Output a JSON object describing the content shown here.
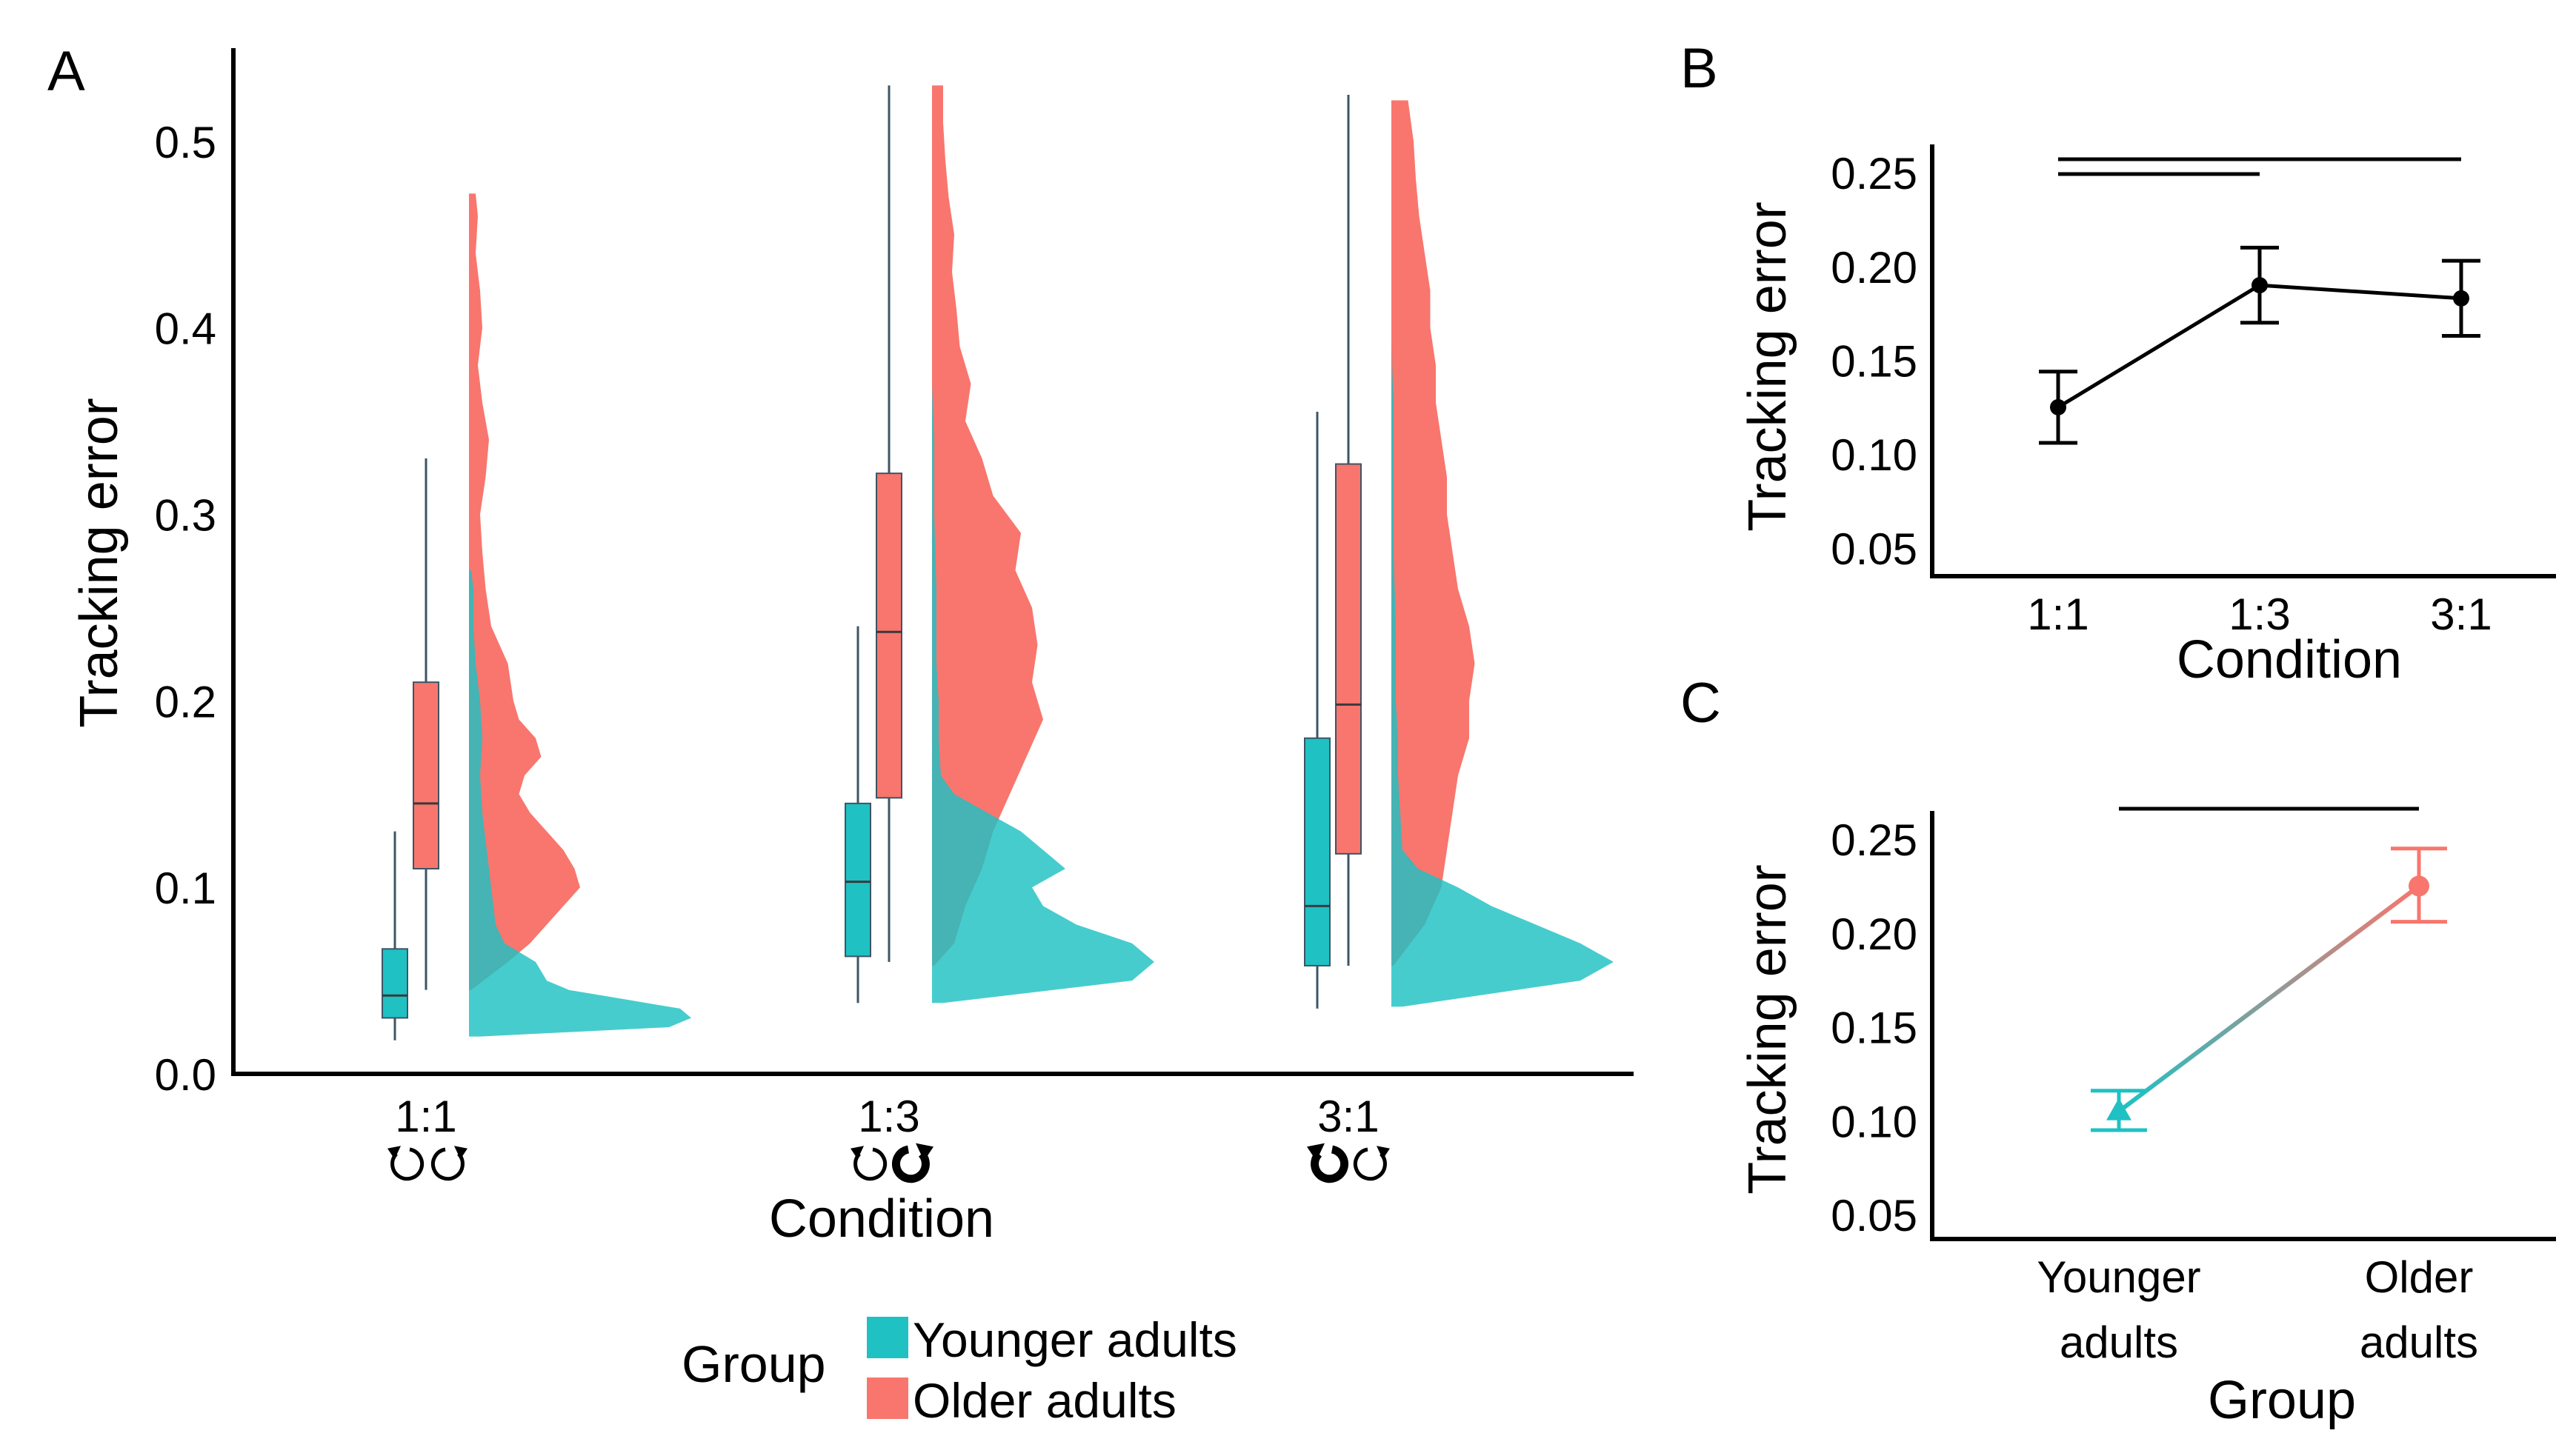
{
  "figure": {
    "colors": {
      "young": "#1fc1c3",
      "old": "#f8766d",
      "line": "#000000",
      "box_edge": "#3d5566"
    },
    "legend": {
      "title": "Group",
      "items": [
        "Younger adults",
        "Older adults"
      ]
    }
  },
  "chart_data": [
    {
      "panel": "A",
      "type": "raincloud",
      "xlabel": "Condition",
      "ylabel": "Tracking error",
      "ylim": [
        0,
        0.55
      ],
      "yticks": [
        "0.0",
        "0.1",
        "0.2",
        "0.3",
        "0.4",
        "0.5"
      ],
      "categories": [
        "1:1",
        "1:3",
        "3:1"
      ],
      "direction_icons": [
        {
          "left": "counter-clockwise",
          "left_bold": false,
          "right": "clockwise",
          "right_bold": false
        },
        {
          "left": "counter-clockwise",
          "left_bold": false,
          "right": "clockwise",
          "right_bold": true
        },
        {
          "left": "counter-clockwise",
          "left_bold": true,
          "right": "clockwise",
          "right_bold": false
        }
      ],
      "series": [
        {
          "name": "Younger adults",
          "boxes": [
            {
              "min": 0.018,
              "q1": 0.03,
              "median": 0.042,
              "q3": 0.067,
              "max": 0.13
            },
            {
              "min": 0.038,
              "q1": 0.063,
              "median": 0.103,
              "q3": 0.145,
              "max": 0.24
            },
            {
              "min": 0.035,
              "q1": 0.058,
              "median": 0.09,
              "q3": 0.18,
              "max": 0.355
            }
          ],
          "densities": [
            {
              "y": [
                0.02,
                0.025,
                0.03,
                0.035,
                0.04,
                0.045,
                0.05,
                0.06,
                0.07,
                0.08,
                0.1,
                0.12,
                0.14,
                0.16,
                0.18,
                0.2,
                0.22,
                0.24,
                0.26,
                0.27
              ],
              "width": [
                0.05,
                0.9,
                1.0,
                0.95,
                0.7,
                0.45,
                0.35,
                0.3,
                0.16,
                0.12,
                0.1,
                0.08,
                0.06,
                0.05,
                0.06,
                0.05,
                0.03,
                0.02,
                0.02,
                0.01
              ]
            },
            {
              "y": [
                0.038,
                0.05,
                0.06,
                0.07,
                0.08,
                0.09,
                0.1,
                0.11,
                0.12,
                0.13,
                0.14,
                0.15,
                0.16,
                0.18,
                0.2,
                0.22,
                0.24,
                0.26,
                0.3,
                0.34,
                0.37
              ],
              "width": [
                0.05,
                0.9,
                1.0,
                0.9,
                0.65,
                0.5,
                0.45,
                0.6,
                0.5,
                0.4,
                0.25,
                0.1,
                0.04,
                0.03,
                0.03,
                0.02,
                0.02,
                0.02,
                0.01,
                0.01,
                0.0
              ]
            },
            {
              "y": [
                0.036,
                0.05,
                0.06,
                0.07,
                0.08,
                0.09,
                0.1,
                0.11,
                0.12,
                0.14,
                0.16,
                0.18,
                0.2,
                0.24,
                0.28,
                0.32,
                0.36,
                0.39
              ],
              "width": [
                0.05,
                0.85,
                1.0,
                0.85,
                0.65,
                0.45,
                0.3,
                0.12,
                0.05,
                0.04,
                0.03,
                0.03,
                0.02,
                0.02,
                0.01,
                0.01,
                0.01,
                0.0
              ]
            }
          ]
        },
        {
          "name": "Older adults",
          "boxes": [
            {
              "min": 0.045,
              "q1": 0.11,
              "median": 0.145,
              "q3": 0.21,
              "max": 0.33
            },
            {
              "min": 0.06,
              "q1": 0.148,
              "median": 0.237,
              "q3": 0.322,
              "max": 0.53
            },
            {
              "min": 0.058,
              "q1": 0.118,
              "median": 0.198,
              "q3": 0.327,
              "max": 0.525
            }
          ],
          "densities": [
            {
              "y": [
                0.045,
                0.06,
                0.07,
                0.08,
                0.09,
                0.1,
                0.11,
                0.12,
                0.13,
                0.14,
                0.15,
                0.16,
                0.17,
                0.18,
                0.19,
                0.2,
                0.22,
                0.24,
                0.26,
                0.28,
                0.3,
                0.32,
                0.34,
                0.36,
                0.38,
                0.4,
                0.42,
                0.44,
                0.46,
                0.472
              ],
              "width": [
                0.02,
                0.35,
                0.55,
                0.7,
                0.85,
                1.0,
                0.95,
                0.85,
                0.7,
                0.55,
                0.45,
                0.5,
                0.65,
                0.6,
                0.45,
                0.4,
                0.35,
                0.2,
                0.15,
                0.12,
                0.1,
                0.15,
                0.18,
                0.12,
                0.08,
                0.12,
                0.1,
                0.06,
                0.08,
                0.06
              ]
            },
            {
              "y": [
                0.058,
                0.07,
                0.09,
                0.11,
                0.13,
                0.15,
                0.17,
                0.19,
                0.21,
                0.23,
                0.25,
                0.27,
                0.29,
                0.31,
                0.33,
                0.35,
                0.37,
                0.39,
                0.41,
                0.43,
                0.45,
                0.47,
                0.49,
                0.51,
                0.53
              ],
              "width": [
                0.02,
                0.2,
                0.3,
                0.45,
                0.55,
                0.7,
                0.85,
                1.0,
                0.9,
                0.95,
                0.9,
                0.75,
                0.8,
                0.55,
                0.45,
                0.3,
                0.35,
                0.25,
                0.22,
                0.18,
                0.2,
                0.15,
                0.12,
                0.1,
                0.1
              ]
            },
            {
              "y": [
                0.058,
                0.08,
                0.1,
                0.12,
                0.14,
                0.16,
                0.18,
                0.2,
                0.22,
                0.24,
                0.26,
                0.28,
                0.3,
                0.32,
                0.34,
                0.36,
                0.38,
                0.4,
                0.42,
                0.44,
                0.46,
                0.48,
                0.5,
                0.522
              ],
              "width": [
                0.02,
                0.3,
                0.45,
                0.5,
                0.55,
                0.6,
                0.7,
                0.7,
                0.75,
                0.7,
                0.6,
                0.55,
                0.5,
                0.5,
                0.45,
                0.4,
                0.4,
                0.35,
                0.35,
                0.3,
                0.25,
                0.22,
                0.2,
                0.15
              ]
            }
          ]
        }
      ]
    },
    {
      "panel": "B",
      "type": "line",
      "xlabel": "Condition",
      "ylabel": "Tracking error",
      "ylim": [
        0.035,
        0.265
      ],
      "yticks": [
        "0.05",
        "0.10",
        "0.15",
        "0.20",
        "0.25"
      ],
      "categories": [
        "1:1",
        "1:3",
        "3:1"
      ],
      "values": [
        0.125,
        0.19,
        0.183
      ],
      "error": [
        [
          0.106,
          0.144
        ],
        [
          0.17,
          0.21
        ],
        [
          0.163,
          0.203
        ]
      ],
      "significance": [
        {
          "from": "1:1",
          "to": "1:3"
        },
        {
          "from": "1:1",
          "to": "3:1"
        }
      ]
    },
    {
      "panel": "C",
      "type": "line",
      "xlabel": "Group",
      "ylabel": "Tracking error",
      "ylim": [
        0.037,
        0.265
      ],
      "yticks": [
        "0.05",
        "0.10",
        "0.15",
        "0.20",
        "0.25"
      ],
      "categories": [
        "Younger adults",
        "Older adults"
      ],
      "category_lines": [
        [
          "Younger",
          "adults"
        ],
        [
          "Older",
          "adults"
        ]
      ],
      "values": [
        0.105,
        0.225
      ],
      "error": [
        [
          0.095,
          0.116
        ],
        [
          0.206,
          0.245
        ]
      ],
      "markers": [
        "triangle",
        "circle"
      ],
      "significance": [
        {
          "from": "Younger adults",
          "to": "Older adults"
        }
      ]
    }
  ]
}
